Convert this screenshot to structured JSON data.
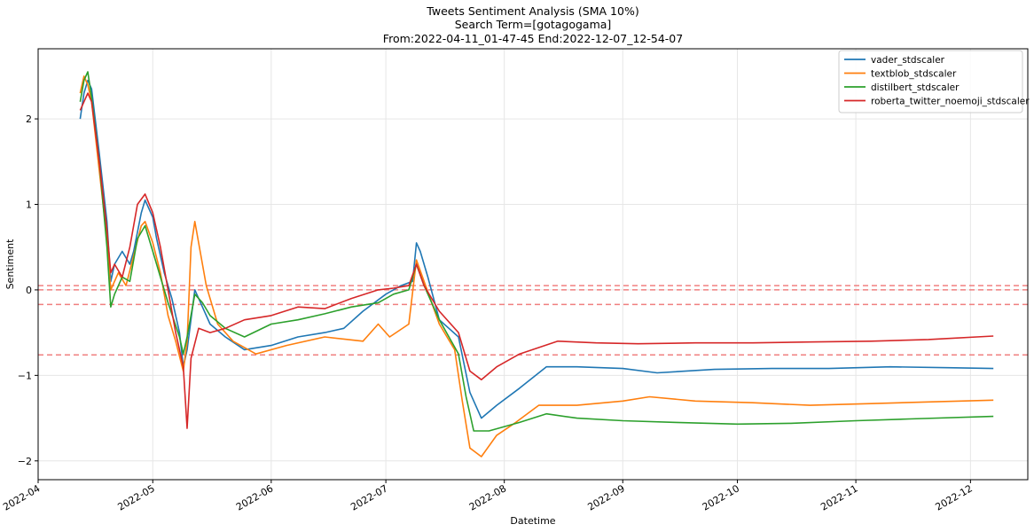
{
  "chart_data": {
    "type": "line",
    "title": "Tweets Sentiment Analysis (SMA 10%)",
    "subtitle_lines": [
      "Search Term=[gotagogama]",
      "From:2022-04-11_01-47-45 End:2022-12-07_12-54-07"
    ],
    "xlabel": "Datetime",
    "ylabel": "Sentiment",
    "xlim": [
      "2022-04-01",
      "2022-12-16"
    ],
    "ylim": [
      -2.22,
      2.82
    ],
    "x_ticks": [
      "2022-04",
      "2022-05",
      "2022-06",
      "2022-07",
      "2022-08",
      "2022-09",
      "2022-10",
      "2022-11",
      "2022-12"
    ],
    "y_ticks": [
      -2,
      -1,
      0,
      1,
      2
    ],
    "y_tick_labels": [
      "−2",
      "−1",
      "0",
      "1",
      "2"
    ],
    "grid": true,
    "legend_position": "top-right",
    "hlines": [
      {
        "y": 0.05,
        "color": "#f08080",
        "style": "dashed"
      },
      {
        "y": 0.0,
        "color": "#f08080",
        "style": "dashed"
      },
      {
        "y": -0.17,
        "color": "#f08080",
        "style": "dashed"
      },
      {
        "y": -0.76,
        "color": "#f08080",
        "style": "dashed"
      }
    ],
    "series": [
      {
        "name": "vader_stdscaler",
        "color": "#1f77b4",
        "points": [
          [
            "2022-04-12",
            2.0
          ],
          [
            "2022-04-13",
            2.3
          ],
          [
            "2022-04-14",
            2.45
          ],
          [
            "2022-04-15",
            2.35
          ],
          [
            "2022-04-17",
            1.6
          ],
          [
            "2022-04-19",
            0.8
          ],
          [
            "2022-04-20",
            0.1
          ],
          [
            "2022-04-21",
            0.3
          ],
          [
            "2022-04-23",
            0.45
          ],
          [
            "2022-04-25",
            0.3
          ],
          [
            "2022-04-26",
            0.45
          ],
          [
            "2022-04-28",
            0.9
          ],
          [
            "2022-04-29",
            1.05
          ],
          [
            "2022-05-01",
            0.85
          ],
          [
            "2022-05-02",
            0.6
          ],
          [
            "2022-05-04",
            0.2
          ],
          [
            "2022-05-06",
            -0.1
          ],
          [
            "2022-05-08",
            -0.5
          ],
          [
            "2022-05-09",
            -0.9
          ],
          [
            "2022-05-10",
            -0.7
          ],
          [
            "2022-05-12",
            0.0
          ],
          [
            "2022-05-14",
            -0.2
          ],
          [
            "2022-05-16",
            -0.4
          ],
          [
            "2022-05-20",
            -0.55
          ],
          [
            "2022-05-25",
            -0.7
          ],
          [
            "2022-06-01",
            -0.65
          ],
          [
            "2022-06-08",
            -0.55
          ],
          [
            "2022-06-15",
            -0.5
          ],
          [
            "2022-06-20",
            -0.45
          ],
          [
            "2022-06-25",
            -0.25
          ],
          [
            "2022-07-01",
            -0.05
          ],
          [
            "2022-07-05",
            0.05
          ],
          [
            "2022-07-08",
            0.1
          ],
          [
            "2022-07-09",
            0.55
          ],
          [
            "2022-07-10",
            0.45
          ],
          [
            "2022-07-12",
            0.15
          ],
          [
            "2022-07-15",
            -0.35
          ],
          [
            "2022-07-20",
            -0.55
          ],
          [
            "2022-07-23",
            -1.2
          ],
          [
            "2022-07-26",
            -1.5
          ],
          [
            "2022-07-30",
            -1.35
          ],
          [
            "2022-08-05",
            -1.15
          ],
          [
            "2022-08-12",
            -0.9
          ],
          [
            "2022-08-20",
            -0.9
          ],
          [
            "2022-09-01",
            -0.92
          ],
          [
            "2022-09-10",
            -0.97
          ],
          [
            "2022-09-25",
            -0.93
          ],
          [
            "2022-10-10",
            -0.92
          ],
          [
            "2022-10-25",
            -0.92
          ],
          [
            "2022-11-10",
            -0.9
          ],
          [
            "2022-11-25",
            -0.91
          ],
          [
            "2022-12-07",
            -0.92
          ]
        ]
      },
      {
        "name": "textblob_stdscaler",
        "color": "#ff7f0e",
        "points": [
          [
            "2022-04-12",
            2.3
          ],
          [
            "2022-04-13",
            2.5
          ],
          [
            "2022-04-14",
            2.4
          ],
          [
            "2022-04-15",
            2.2
          ],
          [
            "2022-04-17",
            1.4
          ],
          [
            "2022-04-19",
            0.6
          ],
          [
            "2022-04-20",
            0.0
          ],
          [
            "2022-04-22",
            0.2
          ],
          [
            "2022-04-24",
            0.05
          ],
          [
            "2022-04-26",
            0.4
          ],
          [
            "2022-04-28",
            0.75
          ],
          [
            "2022-04-29",
            0.8
          ],
          [
            "2022-05-01",
            0.55
          ],
          [
            "2022-05-03",
            0.2
          ],
          [
            "2022-05-05",
            -0.3
          ],
          [
            "2022-05-07",
            -0.6
          ],
          [
            "2022-05-09",
            -0.95
          ],
          [
            "2022-05-10",
            -0.6
          ],
          [
            "2022-05-11",
            0.5
          ],
          [
            "2022-05-12",
            0.8
          ],
          [
            "2022-05-14",
            0.3
          ],
          [
            "2022-05-15",
            0.05
          ],
          [
            "2022-05-18",
            -0.4
          ],
          [
            "2022-05-22",
            -0.6
          ],
          [
            "2022-05-28",
            -0.75
          ],
          [
            "2022-06-05",
            -0.65
          ],
          [
            "2022-06-15",
            -0.55
          ],
          [
            "2022-06-25",
            -0.6
          ],
          [
            "2022-06-29",
            -0.4
          ],
          [
            "2022-07-02",
            -0.55
          ],
          [
            "2022-07-07",
            -0.4
          ],
          [
            "2022-07-09",
            0.35
          ],
          [
            "2022-07-11",
            0.1
          ],
          [
            "2022-07-15",
            -0.4
          ],
          [
            "2022-07-19",
            -0.7
          ],
          [
            "2022-07-21",
            -1.3
          ],
          [
            "2022-07-23",
            -1.85
          ],
          [
            "2022-07-26",
            -1.95
          ],
          [
            "2022-07-30",
            -1.7
          ],
          [
            "2022-08-04",
            -1.55
          ],
          [
            "2022-08-10",
            -1.35
          ],
          [
            "2022-08-20",
            -1.35
          ],
          [
            "2022-09-01",
            -1.3
          ],
          [
            "2022-09-08",
            -1.25
          ],
          [
            "2022-09-20",
            -1.3
          ],
          [
            "2022-10-05",
            -1.32
          ],
          [
            "2022-10-20",
            -1.35
          ],
          [
            "2022-11-05",
            -1.33
          ],
          [
            "2022-11-20",
            -1.31
          ],
          [
            "2022-12-07",
            -1.29
          ]
        ]
      },
      {
        "name": "distilbert_stdscaler",
        "color": "#2ca02c",
        "points": [
          [
            "2022-04-12",
            2.2
          ],
          [
            "2022-04-13",
            2.45
          ],
          [
            "2022-04-14",
            2.55
          ],
          [
            "2022-04-15",
            2.25
          ],
          [
            "2022-04-17",
            1.5
          ],
          [
            "2022-04-19",
            0.5
          ],
          [
            "2022-04-20",
            -0.2
          ],
          [
            "2022-04-21",
            -0.05
          ],
          [
            "2022-04-23",
            0.15
          ],
          [
            "2022-04-25",
            0.1
          ],
          [
            "2022-04-27",
            0.6
          ],
          [
            "2022-04-29",
            0.75
          ],
          [
            "2022-05-01",
            0.45
          ],
          [
            "2022-05-03",
            0.15
          ],
          [
            "2022-05-05",
            -0.15
          ],
          [
            "2022-05-08",
            -0.55
          ],
          [
            "2022-05-09",
            -0.75
          ],
          [
            "2022-05-10",
            -0.55
          ],
          [
            "2022-05-12",
            -0.05
          ],
          [
            "2022-05-14",
            -0.15
          ],
          [
            "2022-05-16",
            -0.3
          ],
          [
            "2022-05-20",
            -0.45
          ],
          [
            "2022-05-25",
            -0.55
          ],
          [
            "2022-06-01",
            -0.4
          ],
          [
            "2022-06-08",
            -0.35
          ],
          [
            "2022-06-15",
            -0.28
          ],
          [
            "2022-06-22",
            -0.2
          ],
          [
            "2022-06-29",
            -0.15
          ],
          [
            "2022-07-03",
            -0.05
          ],
          [
            "2022-07-07",
            0.0
          ],
          [
            "2022-07-09",
            0.3
          ],
          [
            "2022-07-11",
            0.05
          ],
          [
            "2022-07-15",
            -0.35
          ],
          [
            "2022-07-20",
            -0.75
          ],
          [
            "2022-07-22",
            -1.25
          ],
          [
            "2022-07-24",
            -1.65
          ],
          [
            "2022-07-28",
            -1.65
          ],
          [
            "2022-08-05",
            -1.55
          ],
          [
            "2022-08-12",
            -1.45
          ],
          [
            "2022-08-20",
            -1.5
          ],
          [
            "2022-09-01",
            -1.53
          ],
          [
            "2022-09-15",
            -1.55
          ],
          [
            "2022-10-01",
            -1.57
          ],
          [
            "2022-10-15",
            -1.56
          ],
          [
            "2022-11-01",
            -1.53
          ],
          [
            "2022-11-15",
            -1.51
          ],
          [
            "2022-12-07",
            -1.48
          ]
        ]
      },
      {
        "name": "roberta_twitter_noemoji_stdscaler",
        "color": "#d62728",
        "points": [
          [
            "2022-04-12",
            2.1
          ],
          [
            "2022-04-13",
            2.2
          ],
          [
            "2022-04-14",
            2.3
          ],
          [
            "2022-04-15",
            2.2
          ],
          [
            "2022-04-17",
            1.5
          ],
          [
            "2022-04-19",
            0.7
          ],
          [
            "2022-04-20",
            0.2
          ],
          [
            "2022-04-21",
            0.3
          ],
          [
            "2022-04-23",
            0.15
          ],
          [
            "2022-04-25",
            0.5
          ],
          [
            "2022-04-27",
            1.0
          ],
          [
            "2022-04-29",
            1.12
          ],
          [
            "2022-05-01",
            0.9
          ],
          [
            "2022-05-03",
            0.5
          ],
          [
            "2022-05-05",
            0.0
          ],
          [
            "2022-05-07",
            -0.5
          ],
          [
            "2022-05-09",
            -0.9
          ],
          [
            "2022-05-10",
            -1.62
          ],
          [
            "2022-05-11",
            -0.8
          ],
          [
            "2022-05-13",
            -0.45
          ],
          [
            "2022-05-16",
            -0.5
          ],
          [
            "2022-05-20",
            -0.45
          ],
          [
            "2022-05-25",
            -0.35
          ],
          [
            "2022-06-01",
            -0.3
          ],
          [
            "2022-06-08",
            -0.2
          ],
          [
            "2022-06-15",
            -0.22
          ],
          [
            "2022-06-22",
            -0.1
          ],
          [
            "2022-06-29",
            0.0
          ],
          [
            "2022-07-03",
            0.02
          ],
          [
            "2022-07-07",
            0.05
          ],
          [
            "2022-07-09",
            0.3
          ],
          [
            "2022-07-11",
            0.05
          ],
          [
            "2022-07-15",
            -0.25
          ],
          [
            "2022-07-20",
            -0.5
          ],
          [
            "2022-07-23",
            -0.95
          ],
          [
            "2022-07-26",
            -1.05
          ],
          [
            "2022-07-30",
            -0.9
          ],
          [
            "2022-08-05",
            -0.75
          ],
          [
            "2022-08-15",
            -0.6
          ],
          [
            "2022-08-25",
            -0.62
          ],
          [
            "2022-09-05",
            -0.63
          ],
          [
            "2022-09-20",
            -0.62
          ],
          [
            "2022-10-05",
            -0.62
          ],
          [
            "2022-10-20",
            -0.61
          ],
          [
            "2022-11-05",
            -0.6
          ],
          [
            "2022-11-20",
            -0.58
          ],
          [
            "2022-12-07",
            -0.54
          ]
        ]
      }
    ]
  }
}
